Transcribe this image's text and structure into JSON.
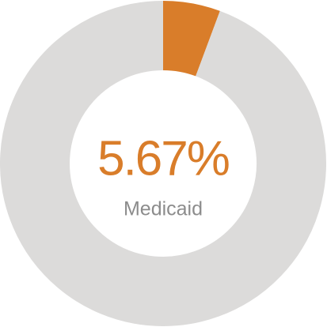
{
  "chart_data": {
    "type": "donut",
    "categories": [
      "Medicaid",
      null
    ],
    "values": [
      5.67,
      94.33
    ],
    "value_labels": [
      "5.67%",
      null
    ],
    "colors": [
      "#d97d2a",
      "#dcdbda"
    ]
  }
}
